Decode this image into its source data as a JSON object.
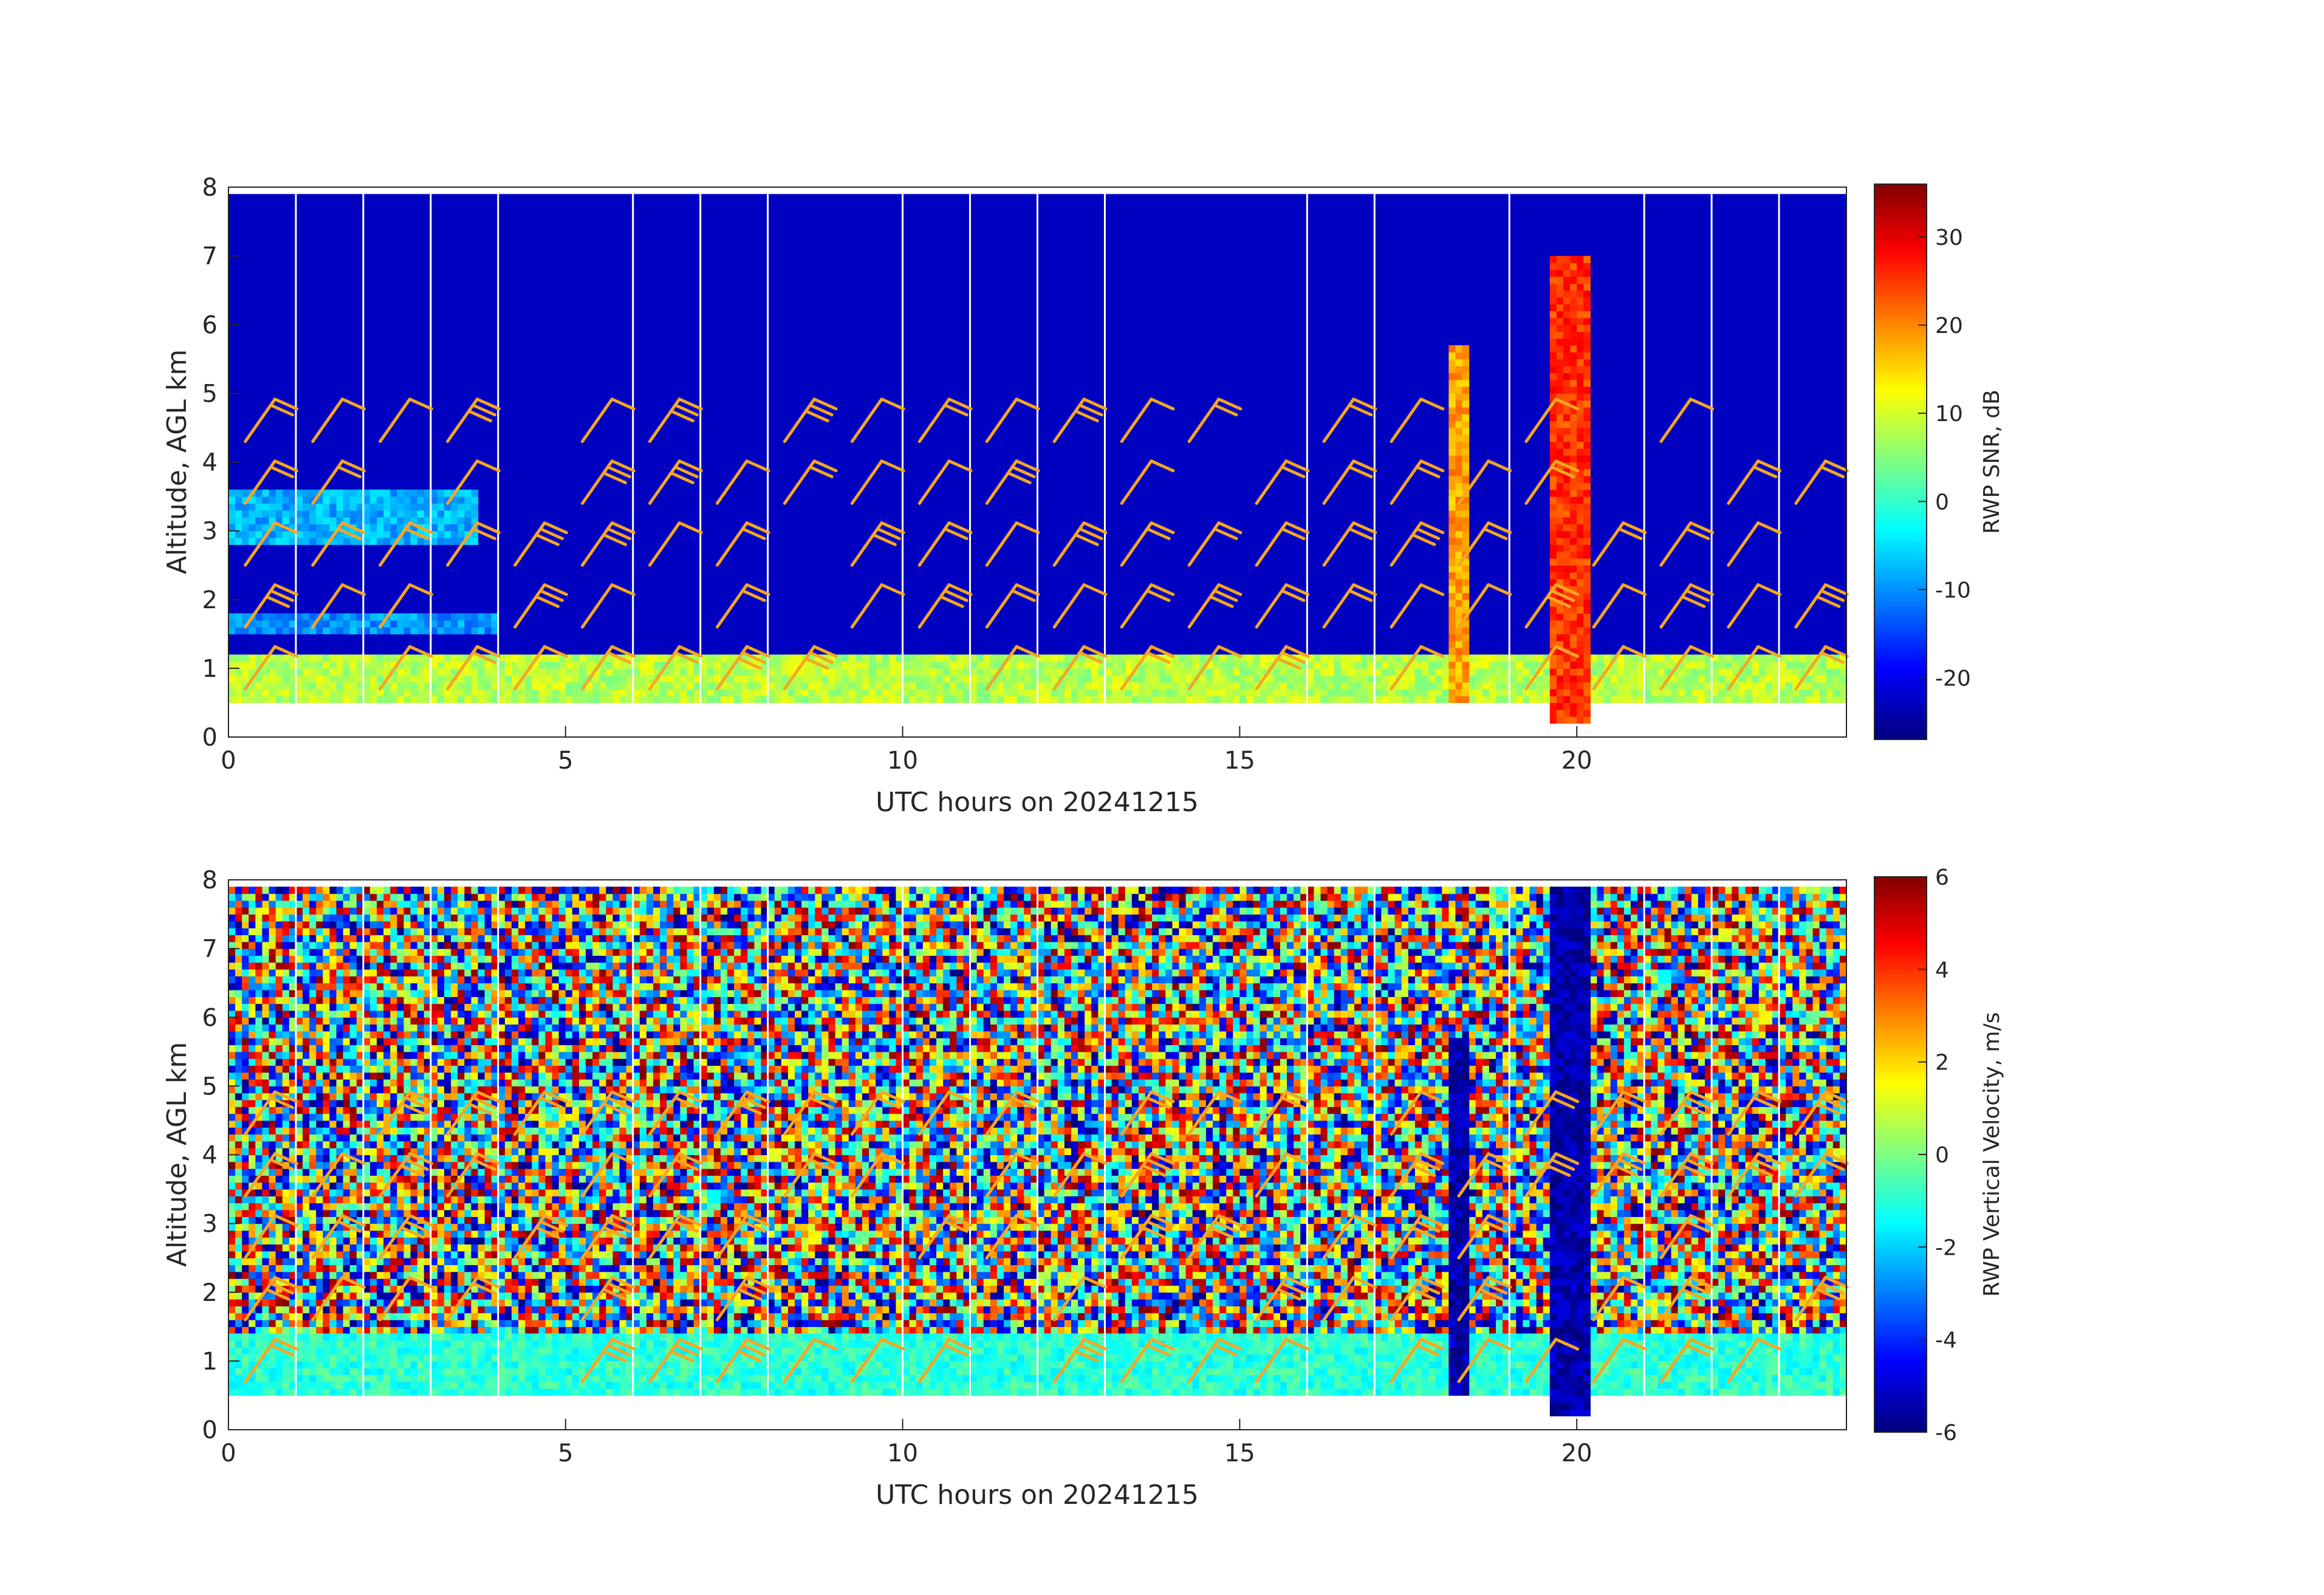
{
  "chart_data": [
    {
      "type": "heatmap",
      "title": "",
      "xlabel": "UTC hours on 20241215",
      "ylabel": "Altitude, AGL km",
      "xlim": [
        0,
        24
      ],
      "ylim": [
        0,
        8
      ],
      "x_ticks": [
        0,
        5,
        10,
        15,
        20
      ],
      "y_ticks": [
        0,
        1,
        2,
        3,
        4,
        5,
        6,
        7,
        8
      ],
      "colorbar": {
        "label": "RWP SNR, dB",
        "colormap": "jet",
        "range": [
          -27,
          36
        ],
        "ticks": [
          -20,
          -10,
          0,
          10,
          20,
          30
        ]
      },
      "data_bottom_km": 0.5,
      "data_top_km": 7.9,
      "gap_lines_hours": [
        1.0,
        2.0,
        3.0,
        4.0,
        6.0,
        7.0,
        8.0,
        10.0,
        11.0,
        12.0,
        13.0,
        16.0,
        17.0,
        19.0,
        21.0,
        22.0,
        23.0
      ],
      "features": [
        {
          "kind": "surface_layer",
          "x_range": [
            0,
            24
          ],
          "y_range": [
            0.5,
            1.2
          ],
          "snr": 8
        },
        {
          "kind": "aerosol_layer",
          "x_range": [
            0,
            3.7
          ],
          "y_range": [
            2.8,
            3.6
          ],
          "snr": -8
        },
        {
          "kind": "aerosol_layer",
          "x_range": [
            0,
            4
          ],
          "y_range": [
            1.5,
            1.8
          ],
          "snr": -10
        },
        {
          "kind": "rain_column",
          "x_range": [
            18.1,
            18.4
          ],
          "y_range": [
            0.5,
            5.7
          ],
          "snr": 18
        },
        {
          "kind": "rain_column",
          "x_range": [
            19.6,
            20.2
          ],
          "y_range": [
            0.2,
            7.0
          ],
          "snr": 25
        }
      ],
      "wind_barb_color": "#f5a623"
    },
    {
      "type": "heatmap",
      "title": "",
      "xlabel": "UTC hours on 20241215",
      "ylabel": "Altitude, AGL km",
      "xlim": [
        0,
        24
      ],
      "ylim": [
        0,
        8
      ],
      "x_ticks": [
        0,
        5,
        10,
        15,
        20
      ],
      "y_ticks": [
        0,
        1,
        2,
        3,
        4,
        5,
        6,
        7,
        8
      ],
      "colorbar": {
        "label": "RWP Vertical Velocity, m/s",
        "colormap": "jet",
        "range": [
          -6,
          6
        ],
        "ticks": [
          -6,
          -4,
          -2,
          0,
          2,
          4,
          6
        ]
      },
      "data_bottom_km": 0.5,
      "data_top_km": 7.9,
      "gap_lines_hours": [
        1.0,
        2.0,
        3.0,
        4.0,
        6.0,
        7.0,
        8.0,
        10.0,
        11.0,
        12.0,
        13.0,
        16.0,
        17.0,
        19.0,
        21.0,
        22.0,
        23.0
      ],
      "features": [
        {
          "kind": "noise_field",
          "x_range": [
            0,
            24
          ],
          "y_range": [
            0.5,
            7.9
          ]
        },
        {
          "kind": "near_zero_layer",
          "x_range": [
            0,
            24
          ],
          "y_range": [
            0.5,
            1.4
          ],
          "w": -1
        },
        {
          "kind": "rain_column",
          "x_range": [
            18.1,
            18.4
          ],
          "y_range": [
            0.5,
            5.7
          ],
          "w": -5.5
        },
        {
          "kind": "rain_column",
          "x_range": [
            19.6,
            20.2
          ],
          "y_range": [
            0.2,
            7.9
          ],
          "w": -5.5
        }
      ],
      "wind_barb_color": "#f5a623"
    }
  ]
}
